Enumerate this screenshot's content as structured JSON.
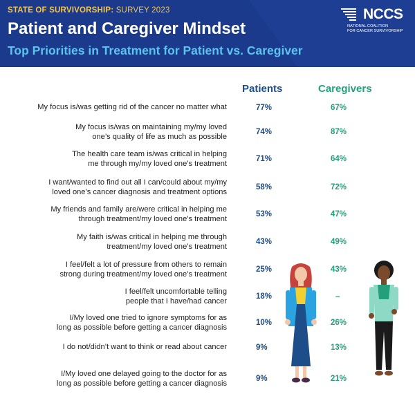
{
  "header": {
    "kicker_bold": "STATE OF SURVIVORSHIP:",
    "kicker_light": "SURVEY 2023",
    "title": "Patient and Caregiver Mindset",
    "subtitle": "Top Priorities in Treatment for Patient vs. Caregiver"
  },
  "logo": {
    "name": "NCCS",
    "line1": "NATIONAL COALITION",
    "line2": "FOR CANCER SURVIVORSHIP"
  },
  "columns": {
    "patients": "Patients",
    "caregivers": "Caregivers"
  },
  "rows": [
    {
      "line1": "My focus is/was getting rid of the cancer no matter what",
      "line2": "",
      "patients": "77%",
      "caregivers": "67%"
    },
    {
      "line1": "My focus is/was on maintaining my/my loved",
      "line2": "one’s quality of life as much as possible",
      "patients": "74%",
      "caregivers": "87%"
    },
    {
      "line1": "The health care team is/was critical in helping",
      "line2": "me through my/my loved one’s treatment",
      "patients": "71%",
      "caregivers": "64%"
    },
    {
      "line1": "I want/wanted to find out all I can/could about my/my",
      "line2": "loved one’s cancer diagnosis and treatment options",
      "patients": "58%",
      "caregivers": "72%"
    },
    {
      "line1": "My friends and family are/were critical in helping me",
      "line2": "through treatment/my loved one’s treatment",
      "patients": "53%",
      "caregivers": "47%"
    },
    {
      "line1": "My faith is/was critical in helping me through",
      "line2": "treatment/my loved one’s treatment",
      "patients": "43%",
      "caregivers": "49%"
    },
    {
      "line1": "I feel/felt a lot of pressure from others to remain",
      "line2": "strong during treatment/my loved one’s treatment",
      "patients": "25%",
      "caregivers": "43%"
    },
    {
      "line1": "I feel/felt uncomfortable telling",
      "line2": "people that I have/had cancer",
      "patients": "18%",
      "caregivers": "–"
    },
    {
      "line1": "I/My loved one tried to ignore symptoms for as",
      "line2": "long as possible before getting a cancer diagnosis",
      "patients": "10%",
      "caregivers": "26%"
    },
    {
      "line1": "I do not/didn’t want to think or read about cancer",
      "line2": "",
      "patients": "9%",
      "caregivers": "13%"
    },
    {
      "line1": "I/My loved one delayed going to the doctor for as",
      "line2": "long as possible before getting a cancer diagnosis",
      "patients": "9%",
      "caregivers": "21%"
    }
  ],
  "colors": {
    "header_bg": "#1b3a8c",
    "kicker": "#f6c544",
    "subtitle": "#5cc3ee",
    "patients": "#1d4e8a",
    "caregivers": "#23a07a"
  },
  "illustrations": [
    "patient-figure",
    "caregiver-figure"
  ]
}
